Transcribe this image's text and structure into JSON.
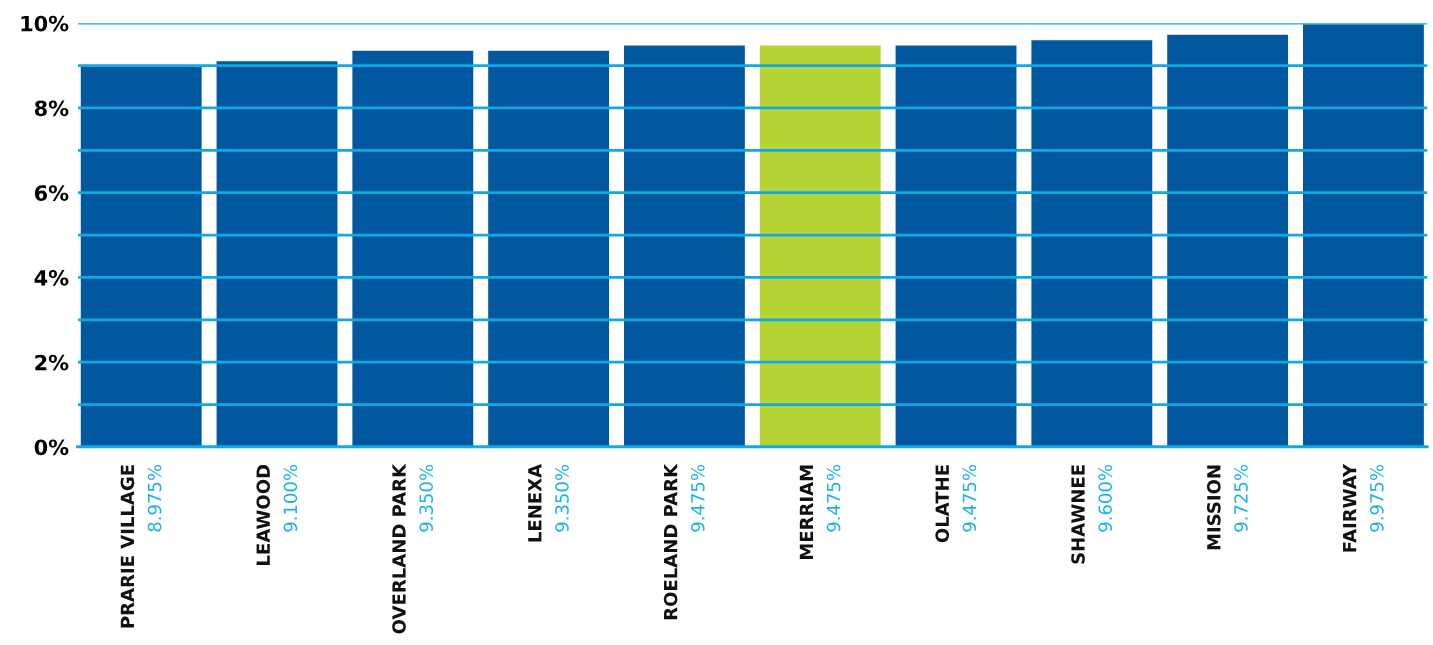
{
  "chart_data": {
    "type": "bar",
    "categories": [
      "PRARIE VILLAGE",
      "LEAWOOD",
      "OVERLAND PARK",
      "LENEXA",
      "ROELAND PARK",
      "MERRIAM",
      "OLATHE",
      "SHAWNEE",
      "MISSION",
      "FAIRWAY"
    ],
    "values": [
      8.975,
      9.1,
      9.35,
      9.35,
      9.475,
      9.475,
      9.475,
      9.6,
      9.725,
      9.975
    ],
    "colors": [
      "#02589f",
      "#02589f",
      "#02589f",
      "#02589f",
      "#02589f",
      "#b5d334",
      "#02589f",
      "#02589f",
      "#02589f",
      "#02589f"
    ],
    "value_labels": [
      "8.975%",
      "9.100%",
      "9.350%",
      "9.350%",
      "9.475%",
      "9.475%",
      "9.475%",
      "9.600%",
      "9.725%",
      "9.975%"
    ],
    "ylim": [
      0,
      10
    ],
    "yticks": [
      {
        "value": 0,
        "label": "0%"
      },
      {
        "value": 1,
        "label": null
      },
      {
        "value": 2,
        "label": "2%"
      },
      {
        "value": 3,
        "label": null
      },
      {
        "value": 4,
        "label": "4%"
      },
      {
        "value": 5,
        "label": null
      },
      {
        "value": 6,
        "label": "6%"
      },
      {
        "value": 7,
        "label": null
      },
      {
        "value": 8,
        "label": "8%"
      },
      {
        "value": 9,
        "label": null
      },
      {
        "value": 10,
        "label": "10%"
      }
    ],
    "grid": "y"
  }
}
